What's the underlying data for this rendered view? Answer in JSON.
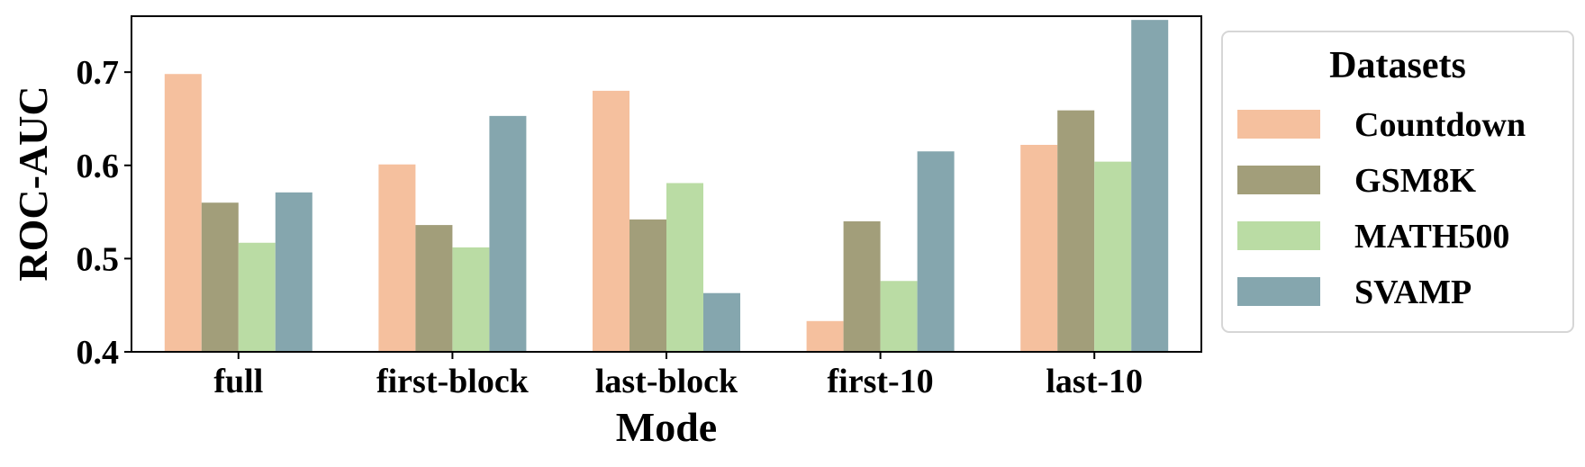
{
  "chart_data": {
    "type": "bar",
    "title": "",
    "xlabel": "Mode",
    "ylabel": "ROC-AUC",
    "categories": [
      "full",
      "first-block",
      "last-block",
      "first-10",
      "last-10"
    ],
    "series": [
      {
        "name": "Countdown",
        "color": "#f5c09e",
        "values": [
          0.698,
          0.601,
          0.68,
          0.433,
          0.622
        ]
      },
      {
        "name": "GSM8K",
        "color": "#a29e7a",
        "values": [
          0.56,
          0.536,
          0.542,
          0.54,
          0.659
        ]
      },
      {
        "name": "MATH500",
        "color": "#badca4",
        "values": [
          0.517,
          0.512,
          0.581,
          0.476,
          0.604
        ]
      },
      {
        "name": "SVAMP",
        "color": "#85a6ae",
        "values": [
          0.571,
          0.653,
          0.463,
          0.615,
          0.756
        ]
      }
    ],
    "ylim": [
      0.4,
      0.76
    ],
    "yticks": [
      "0.4",
      "0.5",
      "0.6",
      "0.7"
    ],
    "grid": false,
    "legend": {
      "title": "Datasets",
      "position": "outside-right"
    }
  }
}
